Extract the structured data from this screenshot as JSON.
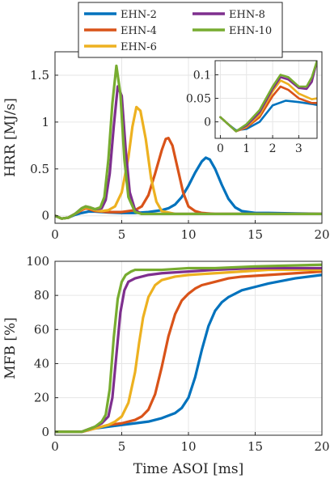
{
  "chart_data": [
    {
      "type": "line",
      "panel": "top",
      "xlabel": "",
      "ylabel": "HRR [MJ/s]",
      "xlim": [
        0,
        20
      ],
      "ylim": [
        -0.08,
        1.75
      ],
      "xticks": [
        0,
        5,
        10,
        15,
        20
      ],
      "yticks": [
        0,
        0.5,
        1,
        1.5
      ],
      "xtick_labels": [
        "0",
        "5",
        "10",
        "15",
        "20"
      ],
      "ytick_labels": [
        "0",
        "0.5",
        "1",
        "1.5"
      ],
      "grid": true,
      "legend": {
        "placement": "top",
        "columns": 2,
        "order": [
          "EHN-2",
          "EHN-8",
          "EHN-4",
          "EHN-10",
          "EHN-6"
        ]
      },
      "series": [
        {
          "name": "EHN-2",
          "color": "#0072BD",
          "x": [
            0,
            0.5,
            1,
            1.5,
            2,
            2.5,
            3,
            4,
            5,
            6,
            7,
            8,
            8.5,
            9,
            9.5,
            10,
            10.5,
            11,
            11.3,
            11.6,
            12,
            12.5,
            13,
            13.5,
            14,
            15,
            16,
            18,
            20
          ],
          "y": [
            0,
            -0.03,
            -0.02,
            0.01,
            0.03,
            0.045,
            0.045,
            0.035,
            0.03,
            0.03,
            0.04,
            0.06,
            0.08,
            0.12,
            0.2,
            0.32,
            0.46,
            0.58,
            0.62,
            0.6,
            0.5,
            0.33,
            0.18,
            0.09,
            0.05,
            0.03,
            0.03,
            0.025,
            0.02
          ]
        },
        {
          "name": "EHN-4",
          "color": "#D95319",
          "x": [
            0,
            0.5,
            1,
            1.5,
            2,
            2.3,
            2.6,
            3,
            4,
            5,
            6,
            6.5,
            7,
            7.5,
            8,
            8.3,
            8.5,
            8.8,
            9.2,
            9.6,
            10,
            10.5,
            11,
            12,
            14,
            20
          ],
          "y": [
            0,
            -0.03,
            -0.02,
            0.02,
            0.06,
            0.08,
            0.07,
            0.05,
            0.04,
            0.04,
            0.06,
            0.1,
            0.22,
            0.45,
            0.7,
            0.82,
            0.83,
            0.75,
            0.5,
            0.25,
            0.1,
            0.05,
            0.03,
            0.02,
            0.02,
            0.02
          ]
        },
        {
          "name": "EHN-6",
          "color": "#EDB120",
          "x": [
            0,
            0.5,
            1,
            1.5,
            2,
            2.3,
            2.6,
            3,
            3.5,
            4,
            4.5,
            5,
            5.5,
            5.8,
            6.1,
            6.4,
            6.8,
            7.2,
            7.6,
            8,
            9,
            10,
            12,
            20
          ],
          "y": [
            0,
            -0.03,
            -0.02,
            0.02,
            0.07,
            0.09,
            0.08,
            0.06,
            0.05,
            0.06,
            0.1,
            0.25,
            0.62,
            0.95,
            1.16,
            1.12,
            0.82,
            0.4,
            0.15,
            0.05,
            0.02,
            0.02,
            0.02,
            0.02
          ]
        },
        {
          "name": "EHN-8",
          "color": "#7E2F8E",
          "x": [
            0,
            0.5,
            1,
            1.5,
            2,
            2.3,
            2.6,
            3,
            3.5,
            3.8,
            4.1,
            4.4,
            4.7,
            5,
            5.3,
            5.6,
            6,
            6.5,
            7,
            8,
            10,
            20
          ],
          "y": [
            0,
            -0.03,
            -0.02,
            0.02,
            0.08,
            0.1,
            0.09,
            0.07,
            0.08,
            0.17,
            0.45,
            0.95,
            1.38,
            1.28,
            0.7,
            0.25,
            0.06,
            0.02,
            0.02,
            0.02,
            0.02,
            0.02
          ]
        },
        {
          "name": "EHN-10",
          "color": "#77AC30",
          "x": [
            0,
            0.5,
            1,
            1.5,
            2,
            2.3,
            2.6,
            3,
            3.4,
            3.7,
            4,
            4.3,
            4.6,
            4.9,
            5.2,
            5.5,
            6,
            6.5,
            7,
            8,
            10,
            20
          ],
          "y": [
            0,
            -0.03,
            -0.02,
            0.02,
            0.08,
            0.1,
            0.09,
            0.07,
            0.09,
            0.2,
            0.6,
            1.2,
            1.6,
            1.3,
            0.6,
            0.2,
            0.04,
            0.02,
            0.02,
            0.02,
            0.02,
            0.02
          ]
        }
      ]
    },
    {
      "type": "line",
      "panel": "inset",
      "xlabel": "",
      "ylabel": "",
      "xlim": [
        -0.2,
        3.7
      ],
      "ylim": [
        -0.035,
        0.13
      ],
      "xticks": [
        0,
        1,
        2,
        3
      ],
      "yticks": [
        0,
        0.05,
        0.1
      ],
      "xtick_labels": [
        "0",
        "1",
        "2",
        "3"
      ],
      "ytick_labels": [
        "0",
        "0.05",
        "0.1"
      ],
      "grid": true,
      "series": [
        {
          "name": "EHN-2",
          "color": "#0072BD",
          "x": [
            0,
            0.3,
            0.6,
            1,
            1.5,
            2,
            2.5,
            3,
            3.5,
            3.7
          ],
          "y": [
            0.01,
            -0.005,
            -0.018,
            -0.015,
            0.0,
            0.035,
            0.045,
            0.042,
            0.038,
            0.036
          ]
        },
        {
          "name": "EHN-4",
          "color": "#D95319",
          "x": [
            0,
            0.3,
            0.6,
            1,
            1.5,
            2,
            2.3,
            2.6,
            3,
            3.5,
            3.7
          ],
          "y": [
            0.01,
            -0.005,
            -0.02,
            -0.012,
            0.01,
            0.055,
            0.075,
            0.068,
            0.05,
            0.04,
            0.04
          ]
        },
        {
          "name": "EHN-6",
          "color": "#EDB120",
          "x": [
            0,
            0.3,
            0.6,
            1,
            1.5,
            2,
            2.3,
            2.6,
            3,
            3.5,
            3.7
          ],
          "y": [
            0.01,
            -0.005,
            -0.02,
            -0.01,
            0.015,
            0.065,
            0.088,
            0.08,
            0.06,
            0.048,
            0.05
          ]
        },
        {
          "name": "EHN-8",
          "color": "#7E2F8E",
          "x": [
            0,
            0.3,
            0.6,
            1,
            1.5,
            2,
            2.3,
            2.6,
            3,
            3.3,
            3.5,
            3.7
          ],
          "y": [
            0.01,
            -0.005,
            -0.02,
            -0.008,
            0.02,
            0.07,
            0.095,
            0.09,
            0.072,
            0.07,
            0.085,
            0.13
          ]
        },
        {
          "name": "EHN-10",
          "color": "#77AC30",
          "x": [
            0,
            0.3,
            0.6,
            1,
            1.5,
            2,
            2.3,
            2.6,
            3,
            3.3,
            3.5,
            3.7
          ],
          "y": [
            0.01,
            -0.005,
            -0.02,
            -0.005,
            0.025,
            0.075,
            0.1,
            0.095,
            0.075,
            0.075,
            0.095,
            0.13
          ]
        }
      ]
    },
    {
      "type": "line",
      "panel": "bottom",
      "xlabel": "Time ASOI [ms]",
      "ylabel": "MFB [%]",
      "xlim": [
        0,
        20
      ],
      "ylim": [
        -2,
        100
      ],
      "xticks": [
        0,
        5,
        10,
        15,
        20
      ],
      "yticks": [
        0,
        20,
        40,
        60,
        80,
        100
      ],
      "xtick_labels": [
        "0",
        "5",
        "10",
        "15",
        "20"
      ],
      "ytick_labels": [
        "0",
        "20",
        "40",
        "60",
        "80",
        "100"
      ],
      "grid": true,
      "series": [
        {
          "name": "EHN-2",
          "color": "#0072BD",
          "x": [
            0,
            2,
            3,
            4,
            5,
            6,
            7,
            8,
            9,
            9.5,
            10,
            10.5,
            11,
            11.5,
            12,
            12.5,
            13,
            14,
            15,
            16,
            18,
            20
          ],
          "y": [
            0,
            0,
            2,
            3,
            4,
            5,
            6,
            8,
            11,
            14,
            20,
            32,
            48,
            62,
            71,
            76,
            79,
            83,
            85,
            87,
            90,
            92
          ]
        },
        {
          "name": "EHN-4",
          "color": "#D95319",
          "x": [
            0,
            2,
            3,
            4,
            5,
            6,
            6.5,
            7,
            7.5,
            8,
            8.5,
            9,
            9.5,
            10,
            10.5,
            11,
            12,
            13,
            14,
            16,
            18,
            20
          ],
          "y": [
            0,
            0,
            2,
            4,
            5,
            7,
            9,
            13,
            22,
            38,
            56,
            69,
            77,
            81,
            84,
            86,
            88,
            90,
            91,
            92,
            93,
            94
          ]
        },
        {
          "name": "EHN-6",
          "color": "#EDB120",
          "x": [
            0,
            2,
            3,
            4,
            4.5,
            5,
            5.5,
            6,
            6.3,
            6.6,
            7,
            7.5,
            8,
            9,
            10,
            12,
            14,
            16,
            18,
            20
          ],
          "y": [
            0,
            0,
            2,
            4,
            6,
            9,
            17,
            35,
            52,
            67,
            79,
            86,
            89,
            91,
            92,
            93,
            94,
            95,
            95,
            95
          ]
        },
        {
          "name": "EHN-8",
          "color": "#7E2F8E",
          "x": [
            0,
            2,
            3,
            3.5,
            4,
            4.3,
            4.6,
            4.9,
            5.2,
            5.5,
            6,
            6.5,
            7,
            8,
            10,
            12,
            15,
            20
          ],
          "y": [
            0,
            0,
            3,
            5,
            9,
            20,
            45,
            70,
            83,
            88,
            90,
            91,
            92,
            93,
            94,
            95,
            96,
            96
          ]
        },
        {
          "name": "EHN-10",
          "color": "#77AC30",
          "x": [
            0,
            2,
            3,
            3.5,
            3.8,
            4.1,
            4.4,
            4.7,
            5,
            5.3,
            5.7,
            6,
            7,
            8,
            10,
            12,
            15,
            20
          ],
          "y": [
            0,
            0,
            3,
            6,
            10,
            25,
            55,
            78,
            88,
            92,
            94,
            95,
            95,
            95,
            96,
            96,
            97,
            98
          ]
        }
      ]
    }
  ]
}
